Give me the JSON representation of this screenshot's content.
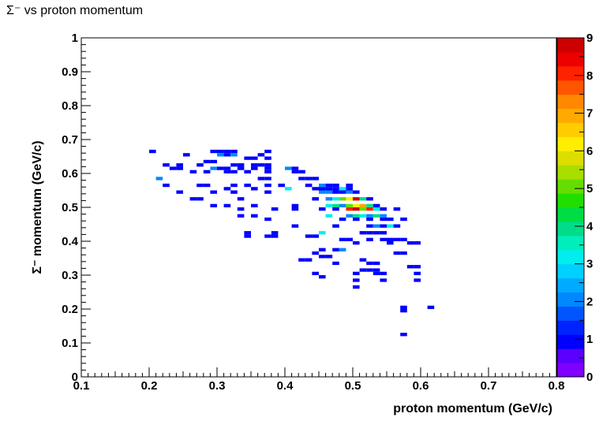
{
  "chart_data": {
    "type": "heatmap",
    "title": "Σ⁻ vs proton momentum",
    "xlabel": "proton momentum (GeV/c)",
    "ylabel": "Σ⁻ momentum (GeV/c)",
    "xlim": [
      0.1,
      0.8
    ],
    "ylim": [
      0,
      1
    ],
    "x_ticks": [
      "0.1",
      "0.2",
      "0.3",
      "0.4",
      "0.5",
      "0.6",
      "0.7",
      "0.8"
    ],
    "y_ticks": [
      "0",
      "0.1",
      "0.2",
      "0.3",
      "0.4",
      "0.5",
      "0.6",
      "0.7",
      "0.8",
      "0.9",
      "1"
    ],
    "bin_size": [
      0.01,
      0.01
    ],
    "grid": false,
    "colorbar": {
      "range": [
        0,
        9
      ],
      "ticks": [
        "0",
        "1",
        "2",
        "3",
        "4",
        "5",
        "6",
        "7",
        "8",
        "9"
      ],
      "colors": [
        "#7f00ff",
        "#5b00ff",
        "#0000ff",
        "#0022ff",
        "#0055ff",
        "#0088ff",
        "#00aaff",
        "#00d0ff",
        "#00eeee",
        "#00eebb",
        "#00dd88",
        "#00dd44",
        "#22dd00",
        "#66dd00",
        "#aadd00",
        "#dddd00",
        "#ffee00",
        "#ffcc00",
        "#ffaa00",
        "#ff8800",
        "#ff5500",
        "#ff2200",
        "#ee0000",
        "#cc0000"
      ]
    },
    "bins": [
      [
        0.205,
        0.665,
        1
      ],
      [
        0.255,
        0.655,
        1
      ],
      [
        0.295,
        0.665,
        1
      ],
      [
        0.305,
        0.665,
        1
      ],
      [
        0.315,
        0.665,
        1
      ],
      [
        0.325,
        0.665,
        1
      ],
      [
        0.375,
        0.665,
        1
      ],
      [
        0.305,
        0.655,
        2
      ],
      [
        0.315,
        0.655,
        1
      ],
      [
        0.325,
        0.655,
        2
      ],
      [
        0.365,
        0.655,
        1
      ],
      [
        0.345,
        0.645,
        1
      ],
      [
        0.355,
        0.645,
        1
      ],
      [
        0.375,
        0.645,
        1
      ],
      [
        0.285,
        0.635,
        1
      ],
      [
        0.295,
        0.635,
        1
      ],
      [
        0.225,
        0.625,
        1
      ],
      [
        0.245,
        0.625,
        1
      ],
      [
        0.275,
        0.625,
        1
      ],
      [
        0.325,
        0.625,
        1
      ],
      [
        0.335,
        0.625,
        1
      ],
      [
        0.355,
        0.625,
        1
      ],
      [
        0.365,
        0.625,
        1
      ],
      [
        0.375,
        0.625,
        1
      ],
      [
        0.235,
        0.615,
        1
      ],
      [
        0.245,
        0.615,
        1
      ],
      [
        0.295,
        0.615,
        2
      ],
      [
        0.305,
        0.615,
        1
      ],
      [
        0.315,
        0.615,
        1
      ],
      [
        0.335,
        0.615,
        1
      ],
      [
        0.355,
        0.615,
        1
      ],
      [
        0.375,
        0.615,
        1
      ],
      [
        0.405,
        0.615,
        2
      ],
      [
        0.415,
        0.615,
        1
      ],
      [
        0.265,
        0.605,
        1
      ],
      [
        0.285,
        0.605,
        1
      ],
      [
        0.315,
        0.605,
        1
      ],
      [
        0.325,
        0.605,
        1
      ],
      [
        0.345,
        0.605,
        1
      ],
      [
        0.375,
        0.605,
        1
      ],
      [
        0.415,
        0.605,
        1
      ],
      [
        0.425,
        0.605,
        1
      ],
      [
        0.215,
        0.585,
        2
      ],
      [
        0.365,
        0.585,
        1
      ],
      [
        0.375,
        0.585,
        1
      ],
      [
        0.425,
        0.585,
        1
      ],
      [
        0.435,
        0.585,
        1
      ],
      [
        0.445,
        0.585,
        1
      ],
      [
        0.225,
        0.565,
        1
      ],
      [
        0.275,
        0.565,
        1
      ],
      [
        0.285,
        0.565,
        1
      ],
      [
        0.325,
        0.565,
        1
      ],
      [
        0.345,
        0.565,
        1
      ],
      [
        0.375,
        0.565,
        1
      ],
      [
        0.395,
        0.565,
        1
      ],
      [
        0.435,
        0.565,
        1
      ],
      [
        0.455,
        0.565,
        2
      ],
      [
        0.465,
        0.565,
        1
      ],
      [
        0.475,
        0.565,
        1
      ],
      [
        0.495,
        0.565,
        1
      ],
      [
        0.315,
        0.555,
        1
      ],
      [
        0.355,
        0.555,
        1
      ],
      [
        0.405,
        0.555,
        3
      ],
      [
        0.445,
        0.555,
        1
      ],
      [
        0.455,
        0.555,
        1
      ],
      [
        0.465,
        0.555,
        1
      ],
      [
        0.475,
        0.555,
        1
      ],
      [
        0.485,
        0.555,
        3
      ],
      [
        0.495,
        0.555,
        1
      ],
      [
        0.245,
        0.545,
        1
      ],
      [
        0.295,
        0.545,
        1
      ],
      [
        0.325,
        0.545,
        1
      ],
      [
        0.375,
        0.545,
        1
      ],
      [
        0.455,
        0.545,
        2
      ],
      [
        0.465,
        0.545,
        2
      ],
      [
        0.475,
        0.545,
        1
      ],
      [
        0.485,
        0.545,
        1
      ],
      [
        0.495,
        0.545,
        2
      ],
      [
        0.505,
        0.545,
        1
      ],
      [
        0.265,
        0.525,
        1
      ],
      [
        0.275,
        0.525,
        1
      ],
      [
        0.335,
        0.525,
        1
      ],
      [
        0.445,
        0.525,
        1
      ],
      [
        0.465,
        0.525,
        2
      ],
      [
        0.475,
        0.525,
        3
      ],
      [
        0.485,
        0.525,
        5
      ],
      [
        0.495,
        0.525,
        6
      ],
      [
        0.505,
        0.525,
        9
      ],
      [
        0.515,
        0.525,
        4
      ],
      [
        0.525,
        0.525,
        1
      ],
      [
        0.295,
        0.505,
        1
      ],
      [
        0.315,
        0.505,
        1
      ],
      [
        0.355,
        0.505,
        1
      ],
      [
        0.415,
        0.505,
        1
      ],
      [
        0.465,
        0.505,
        3
      ],
      [
        0.475,
        0.505,
        4
      ],
      [
        0.485,
        0.505,
        2
      ],
      [
        0.495,
        0.505,
        5
      ],
      [
        0.505,
        0.505,
        6
      ],
      [
        0.515,
        0.505,
        7
      ],
      [
        0.525,
        0.505,
        4
      ],
      [
        0.535,
        0.505,
        1
      ],
      [
        0.335,
        0.495,
        1
      ],
      [
        0.385,
        0.495,
        1
      ],
      [
        0.415,
        0.495,
        1
      ],
      [
        0.455,
        0.495,
        1
      ],
      [
        0.475,
        0.495,
        1
      ],
      [
        0.495,
        0.495,
        8
      ],
      [
        0.505,
        0.495,
        9
      ],
      [
        0.515,
        0.495,
        5
      ],
      [
        0.525,
        0.495,
        8
      ],
      [
        0.535,
        0.495,
        3
      ],
      [
        0.545,
        0.495,
        1
      ],
      [
        0.565,
        0.495,
        1
      ],
      [
        0.335,
        0.475,
        1
      ],
      [
        0.355,
        0.475,
        1
      ],
      [
        0.465,
        0.475,
        3
      ],
      [
        0.495,
        0.475,
        2
      ],
      [
        0.505,
        0.475,
        4
      ],
      [
        0.515,
        0.475,
        3
      ],
      [
        0.525,
        0.475,
        2
      ],
      [
        0.535,
        0.475,
        4
      ],
      [
        0.545,
        0.475,
        2
      ],
      [
        0.375,
        0.465,
        1
      ],
      [
        0.485,
        0.465,
        1
      ],
      [
        0.505,
        0.465,
        1
      ],
      [
        0.525,
        0.465,
        1
      ],
      [
        0.545,
        0.465,
        1
      ],
      [
        0.555,
        0.465,
        1
      ],
      [
        0.575,
        0.465,
        1
      ],
      [
        0.415,
        0.445,
        1
      ],
      [
        0.475,
        0.445,
        1
      ],
      [
        0.525,
        0.445,
        1
      ],
      [
        0.535,
        0.445,
        2
      ],
      [
        0.545,
        0.445,
        1
      ],
      [
        0.555,
        0.445,
        3
      ],
      [
        0.565,
        0.445,
        1
      ],
      [
        0.345,
        0.425,
        1
      ],
      [
        0.385,
        0.425,
        1
      ],
      [
        0.455,
        0.425,
        3
      ],
      [
        0.515,
        0.425,
        1
      ],
      [
        0.525,
        0.425,
        1
      ],
      [
        0.535,
        0.425,
        1
      ],
      [
        0.545,
        0.425,
        1
      ],
      [
        0.345,
        0.415,
        1
      ],
      [
        0.375,
        0.415,
        1
      ],
      [
        0.385,
        0.415,
        1
      ],
      [
        0.435,
        0.415,
        1
      ],
      [
        0.445,
        0.415,
        1
      ],
      [
        0.485,
        0.405,
        1
      ],
      [
        0.495,
        0.405,
        1
      ],
      [
        0.525,
        0.405,
        1
      ],
      [
        0.545,
        0.405,
        1
      ],
      [
        0.555,
        0.405,
        1
      ],
      [
        0.565,
        0.405,
        1
      ],
      [
        0.575,
        0.405,
        1
      ],
      [
        0.505,
        0.395,
        1
      ],
      [
        0.555,
        0.395,
        1
      ],
      [
        0.585,
        0.395,
        1
      ],
      [
        0.595,
        0.395,
        1
      ],
      [
        0.475,
        0.375,
        1
      ],
      [
        0.485,
        0.375,
        2
      ],
      [
        0.455,
        0.375,
        1
      ],
      [
        0.565,
        0.365,
        1
      ],
      [
        0.575,
        0.365,
        1
      ],
      [
        0.445,
        0.365,
        1
      ],
      [
        0.455,
        0.355,
        1
      ],
      [
        0.465,
        0.355,
        1
      ],
      [
        0.425,
        0.345,
        1
      ],
      [
        0.435,
        0.345,
        1
      ],
      [
        0.515,
        0.345,
        1
      ],
      [
        0.475,
        0.335,
        1
      ],
      [
        0.525,
        0.335,
        1
      ],
      [
        0.535,
        0.335,
        1
      ],
      [
        0.585,
        0.325,
        1
      ],
      [
        0.595,
        0.325,
        1
      ],
      [
        0.515,
        0.315,
        1
      ],
      [
        0.525,
        0.315,
        1
      ],
      [
        0.535,
        0.315,
        1
      ],
      [
        0.445,
        0.305,
        1
      ],
      [
        0.505,
        0.305,
        1
      ],
      [
        0.535,
        0.305,
        1
      ],
      [
        0.545,
        0.305,
        1
      ],
      [
        0.595,
        0.305,
        1
      ],
      [
        0.455,
        0.295,
        1
      ],
      [
        0.505,
        0.285,
        1
      ],
      [
        0.545,
        0.285,
        1
      ],
      [
        0.595,
        0.285,
        1
      ],
      [
        0.505,
        0.265,
        1
      ],
      [
        0.575,
        0.205,
        1
      ],
      [
        0.615,
        0.205,
        1
      ],
      [
        0.575,
        0.195,
        1
      ],
      [
        0.575,
        0.125,
        1
      ]
    ]
  }
}
